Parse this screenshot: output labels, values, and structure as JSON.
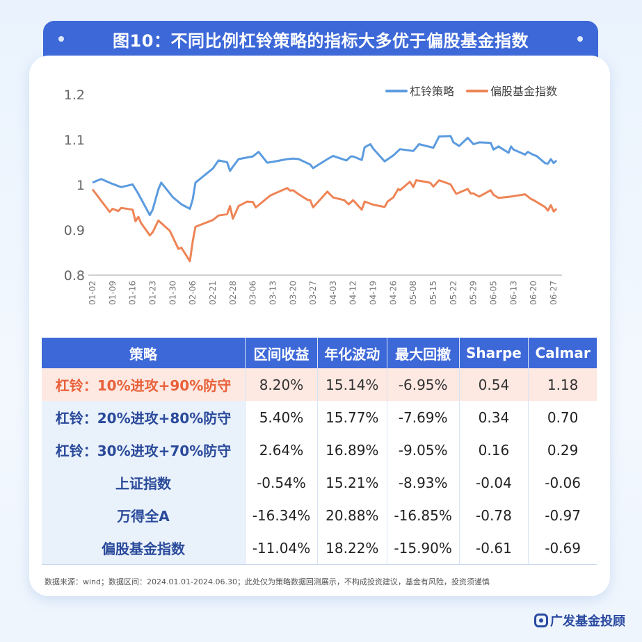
{
  "title": "图10：不同比例杠铃策略的指标大多优于偏股基金指数",
  "chart_data": {
    "type": "line",
    "title": "",
    "ylim": [
      0.8,
      1.2
    ],
    "yticks": [
      "1.2",
      "1.1",
      "1",
      "0.9",
      "0.8"
    ],
    "xticks": [
      "01-02",
      "01-09",
      "01-16",
      "01-23",
      "01-30",
      "02-06",
      "02-21",
      "02-28",
      "03-06",
      "03-13",
      "03-20",
      "03-27",
      "04-03",
      "04-12",
      "04-19",
      "04-26",
      "05-08",
      "05-15",
      "05-22",
      "05-29",
      "06-05",
      "06-13",
      "06-20",
      "06-27"
    ],
    "legend_position": "top-right",
    "grid": false,
    "series": [
      {
        "name": "杠铃策略",
        "color": "#5b9bdf",
        "points": [
          [
            "01-02",
            1.005
          ],
          [
            "01-05",
            1.013
          ],
          [
            "01-09",
            1.002
          ],
          [
            "01-12",
            0.995
          ],
          [
            "01-16",
            1.001
          ],
          [
            "01-18",
            0.98
          ],
          [
            "01-22",
            0.933
          ],
          [
            "01-23",
            0.945
          ],
          [
            "01-25",
            0.99
          ],
          [
            "01-26",
            1.005
          ],
          [
            "01-30",
            0.973
          ],
          [
            "02-02",
            0.957
          ],
          [
            "02-05",
            0.947
          ],
          [
            "02-06",
            0.968
          ],
          [
            "02-08",
            1.005
          ],
          [
            "02-21",
            1.036
          ],
          [
            "02-23",
            1.054
          ],
          [
            "02-26",
            1.05
          ],
          [
            "02-27",
            1.031
          ],
          [
            "02-28",
            1.04
          ],
          [
            "03-01",
            1.057
          ],
          [
            "03-06",
            1.063
          ],
          [
            "03-08",
            1.073
          ],
          [
            "03-11",
            1.049
          ],
          [
            "03-13",
            1.051
          ],
          [
            "03-18",
            1.057
          ],
          [
            "03-20",
            1.058
          ],
          [
            "03-22",
            1.057
          ],
          [
            "03-26",
            1.045
          ],
          [
            "03-27",
            1.037
          ],
          [
            "04-01",
            1.057
          ],
          [
            "04-03",
            1.064
          ],
          [
            "04-09",
            1.054
          ],
          [
            "04-11",
            1.063
          ],
          [
            "04-12",
            1.063
          ],
          [
            "04-15",
            1.055
          ],
          [
            "04-16",
            1.083
          ],
          [
            "04-18",
            1.09
          ],
          [
            "04-19",
            1.08
          ],
          [
            "04-23",
            1.052
          ],
          [
            "04-26",
            1.065
          ],
          [
            "04-30",
            1.079
          ],
          [
            "05-08",
            1.075
          ],
          [
            "05-10",
            1.09
          ],
          [
            "05-15",
            1.082
          ],
          [
            "05-17",
            1.107
          ],
          [
            "05-21",
            1.108
          ],
          [
            "05-22",
            1.094
          ],
          [
            "05-24",
            1.086
          ],
          [
            "05-27",
            1.104
          ],
          [
            "05-29",
            1.09
          ],
          [
            "05-31",
            1.094
          ],
          [
            "06-04",
            1.093
          ],
          [
            "06-05",
            1.078
          ],
          [
            "06-07",
            1.085
          ],
          [
            "06-11",
            1.071
          ],
          [
            "06-12",
            1.085
          ],
          [
            "06-13",
            1.078
          ],
          [
            "06-17",
            1.067
          ],
          [
            "06-18",
            1.073
          ],
          [
            "06-20",
            1.066
          ],
          [
            "06-21",
            1.064
          ],
          [
            "06-24",
            1.048
          ],
          [
            "06-25",
            1.047
          ],
          [
            "06-26",
            1.057
          ],
          [
            "06-27",
            1.048
          ],
          [
            "06-28",
            1.054
          ]
        ]
      },
      {
        "name": "偏股基金指数",
        "color": "#ee8456",
        "points": [
          [
            "01-02",
            0.99
          ],
          [
            "01-05",
            0.965
          ],
          [
            "01-08",
            0.94
          ],
          [
            "01-09",
            0.947
          ],
          [
            "01-11",
            0.942
          ],
          [
            "01-12",
            0.949
          ],
          [
            "01-16",
            0.945
          ],
          [
            "01-17",
            0.919
          ],
          [
            "01-18",
            0.929
          ],
          [
            "01-19",
            0.915
          ],
          [
            "01-22",
            0.888
          ],
          [
            "01-23",
            0.895
          ],
          [
            "01-25",
            0.921
          ],
          [
            "01-29",
            0.898
          ],
          [
            "02-01",
            0.858
          ],
          [
            "02-02",
            0.861
          ],
          [
            "02-05",
            0.831
          ],
          [
            "02-06",
            0.875
          ],
          [
            "02-08",
            0.907
          ],
          [
            "02-21",
            0.922
          ],
          [
            "02-23",
            0.932
          ],
          [
            "02-26",
            0.935
          ],
          [
            "02-27",
            0.953
          ],
          [
            "02-28",
            0.925
          ],
          [
            "03-01",
            0.953
          ],
          [
            "03-04",
            0.963
          ],
          [
            "03-06",
            0.962
          ],
          [
            "03-07",
            0.95
          ],
          [
            "03-12",
            0.976
          ],
          [
            "03-13",
            0.979
          ],
          [
            "03-18",
            0.993
          ],
          [
            "03-19",
            0.987
          ],
          [
            "03-20",
            0.988
          ],
          [
            "03-22",
            0.979
          ],
          [
            "03-25",
            0.967
          ],
          [
            "03-26",
            0.966
          ],
          [
            "03-27",
            0.95
          ],
          [
            "04-01",
            0.985
          ],
          [
            "04-03",
            0.972
          ],
          [
            "04-08",
            0.966
          ],
          [
            "04-10",
            0.957
          ],
          [
            "04-12",
            0.966
          ],
          [
            "04-15",
            0.945
          ],
          [
            "04-16",
            0.963
          ],
          [
            "04-19",
            0.956
          ],
          [
            "04-23",
            0.951
          ],
          [
            "04-24",
            0.963
          ],
          [
            "04-26",
            0.972
          ],
          [
            "04-29",
            0.991
          ],
          [
            "04-30",
            0.988
          ],
          [
            "05-06",
            1.007
          ],
          [
            "05-08",
            0.995
          ],
          [
            "05-09",
            1.01
          ],
          [
            "05-13",
            1.006
          ],
          [
            "05-14",
            1.004
          ],
          [
            "05-15",
            0.996
          ],
          [
            "05-17",
            1.01
          ],
          [
            "05-21",
            1.001
          ],
          [
            "05-22",
            0.99
          ],
          [
            "05-23",
            0.98
          ],
          [
            "05-27",
            0.991
          ],
          [
            "05-28",
            0.981
          ],
          [
            "05-29",
            0.981
          ],
          [
            "05-31",
            0.974
          ],
          [
            "06-04",
            0.988
          ],
          [
            "06-05",
            0.978
          ],
          [
            "06-07",
            0.971
          ],
          [
            "06-12",
            0.974
          ],
          [
            "06-13",
            0.975
          ],
          [
            "06-17",
            0.979
          ],
          [
            "06-19",
            0.969
          ],
          [
            "06-20",
            0.966
          ],
          [
            "06-24",
            0.951
          ],
          [
            "06-25",
            0.943
          ],
          [
            "06-26",
            0.955
          ],
          [
            "06-27",
            0.941
          ],
          [
            "06-28",
            0.947
          ]
        ]
      }
    ]
  },
  "table": {
    "headers": [
      "策略",
      "区间收益",
      "年化波动",
      "最大回撤",
      "Sharpe",
      "Calmar"
    ],
    "rows": [
      [
        "杠铃：10%进攻+90%防守",
        "8.20%",
        "15.14%",
        "-6.95%",
        "0.54",
        "1.18"
      ],
      [
        "杠铃：20%进攻+80%防守",
        "5.40%",
        "15.77%",
        "-7.69%",
        "0.34",
        "0.70"
      ],
      [
        "杠铃：30%进攻+70%防守",
        "2.64%",
        "16.89%",
        "-9.05%",
        "0.16",
        "0.29"
      ],
      [
        "上证指数",
        "-0.54%",
        "15.21%",
        "-8.93%",
        "-0.04",
        "-0.06"
      ],
      [
        "万得全A",
        "-16.34%",
        "20.88%",
        "-16.85%",
        "-0.78",
        "-0.97"
      ],
      [
        "偏股基金指数",
        "-11.04%",
        "18.22%",
        "-15.90%",
        "-0.61",
        "-0.69"
      ]
    ],
    "highlight_row_color": "#fde8e2",
    "highlight_text_color": "#e8613a"
  },
  "note": "数据来源：wind；数据区间：2024.01.01-2024.06.30；此处仅为策略数据回测展示，不构成投资建议，基金有风险，投资须谨慎",
  "logo": {
    "text": "广发基金投顾",
    "icon": "brand-logo-icon"
  }
}
